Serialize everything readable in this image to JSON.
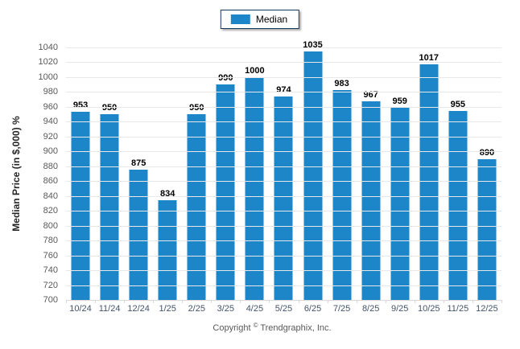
{
  "legend": {
    "label": "Median",
    "swatch_color": "#1c86c8"
  },
  "footer": {
    "prefix": "Copyright",
    "symbol": "©",
    "suffix": "Trendgraphix, Inc."
  },
  "colors": {
    "bar": "#1c86c8",
    "gridline": "#e8e8e8",
    "y_tick_text": "#595959",
    "x_tick_text": "#44546a",
    "legend_border": "#17375d"
  },
  "chart_data": {
    "type": "bar",
    "title": "",
    "xlabel": "",
    "ylabel": "Median Price (in $,000) %",
    "categories": [
      "10/24",
      "11/24",
      "12/24",
      "1/25",
      "2/25",
      "3/25",
      "4/25",
      "5/25",
      "6/25",
      "7/25",
      "8/25",
      "9/25",
      "10/25",
      "11/25",
      "12/25"
    ],
    "series": [
      {
        "name": "Median",
        "values": [
          953,
          950,
          875,
          834,
          950,
          990,
          1000,
          974,
          1035,
          983,
          967,
          959,
          1017,
          955,
          890
        ]
      }
    ],
    "ylim": [
      700,
      1040
    ],
    "ytick_step": 20,
    "yticks": [
      700,
      720,
      740,
      760,
      780,
      800,
      820,
      840,
      860,
      880,
      900,
      920,
      940,
      960,
      980,
      1000,
      1020,
      1040
    ],
    "grid": "horizontal",
    "legend_position": "top-center",
    "bar_color": "#1c86c8",
    "value_labels": "above-bars"
  }
}
